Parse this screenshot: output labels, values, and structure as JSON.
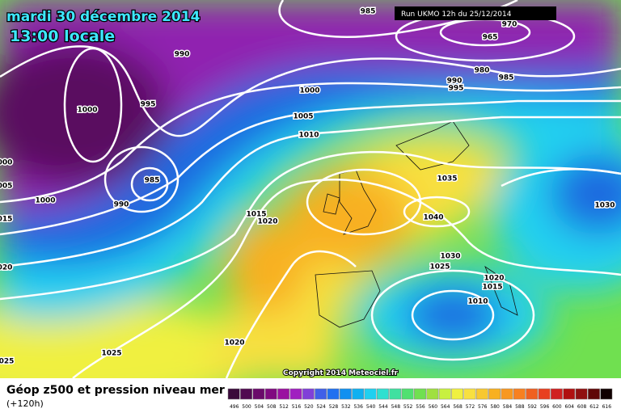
{
  "header": {
    "date": "mardi 30 décembre 2014",
    "time": "13:00 locale",
    "run": "Run UKMO 12h du 25/12/2014"
  },
  "map": {
    "copyright": "Copyright 2014 Meteociel.fr",
    "isobar_labels": [
      "985",
      "970",
      "965",
      "990",
      "980",
      "985",
      "990",
      "995",
      "995",
      "1000",
      "1000",
      "1005",
      "1010",
      "985",
      "990",
      "1000",
      "000",
      "005",
      "015",
      "020",
      "1015",
      "1020",
      "1035",
      "1040",
      "1030",
      "1030",
      "1025",
      "1020",
      "1015",
      "1010",
      "025",
      "1025",
      "1020"
    ]
  },
  "footer": {
    "title": "Géop z500 et pression niveau mer",
    "lead_time": "(+120h)",
    "scale": {
      "values": [
        496,
        500,
        504,
        508,
        512,
        516,
        520,
        524,
        528,
        532,
        536,
        540,
        544,
        548,
        552,
        556,
        560,
        564,
        568,
        572,
        576,
        580,
        584,
        588,
        592,
        596,
        600,
        604,
        608,
        612,
        616
      ],
      "colors": [
        "#3a0a3a",
        "#500a50",
        "#6a0a6a",
        "#800a80",
        "#9a10a0",
        "#a020c0",
        "#8040d8",
        "#4060e8",
        "#2070f0",
        "#1090f0",
        "#10b0f0",
        "#20d0f0",
        "#30e0d0",
        "#40e0a0",
        "#50e070",
        "#70e050",
        "#a0e040",
        "#c8f040",
        "#f0f040",
        "#f8e040",
        "#f8c830",
        "#f8b020",
        "#f89820",
        "#f88020",
        "#f06020",
        "#e84020",
        "#d02020",
        "#b01010",
        "#901010",
        "#600808",
        "#100000"
      ]
    }
  }
}
